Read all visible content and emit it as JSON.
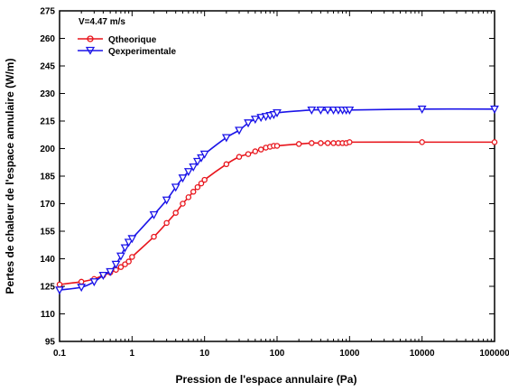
{
  "chart_data": {
    "type": "line",
    "xscale": "log",
    "xlabel": "Pression de l'espace annulaire (Pa)",
    "ylabel": "Pertes de chaleur de l'espace annulaire (W/m)",
    "xlim": [
      0.1,
      100000
    ],
    "ylim": [
      95,
      275
    ],
    "x_ticks": [
      0.1,
      1,
      10,
      100,
      1000,
      10000,
      100000
    ],
    "x_tick_labels": [
      "0.1",
      "1",
      "10",
      "100",
      "1000",
      "10000",
      "100000"
    ],
    "y_ticks": [
      95,
      110,
      125,
      140,
      155,
      170,
      185,
      200,
      215,
      230,
      245,
      260,
      275
    ],
    "y_tick_labels": [
      "95",
      "110",
      "125",
      "140",
      "155",
      "170",
      "185",
      "200",
      "215",
      "230",
      "245",
      "260",
      "275"
    ],
    "legend_title": "V=4.47 m/s",
    "legend_position": "top-left",
    "grid": false,
    "series": [
      {
        "name": "Qtheorique",
        "color": "#e8141b",
        "marker": "circle",
        "x": [
          0.1,
          0.2,
          0.3,
          0.4,
          0.5,
          0.6,
          0.7,
          0.8,
          0.9,
          1,
          2,
          3,
          4,
          5,
          6,
          7,
          8,
          9,
          10,
          20,
          30,
          40,
          50,
          60,
          70,
          80,
          90,
          100,
          200,
          300,
          400,
          500,
          600,
          700,
          800,
          900,
          1000,
          10000,
          100000
        ],
        "values": [
          126,
          127.5,
          129,
          131,
          132.5,
          134,
          135.5,
          137,
          138.5,
          141,
          152,
          159.5,
          165,
          170,
          173.5,
          176.5,
          179,
          181,
          183,
          191.5,
          195.5,
          197,
          198.5,
          199.5,
          200.5,
          201,
          201.5,
          201.5,
          202.5,
          203,
          203,
          203,
          203,
          203,
          203,
          203,
          203.5,
          203.5,
          203.5
        ]
      },
      {
        "name": "Qexperimentale",
        "color": "#1b14e8",
        "marker": "triangle-down",
        "x": [
          0.1,
          0.2,
          0.3,
          0.4,
          0.5,
          0.6,
          0.7,
          0.8,
          0.9,
          1,
          2,
          3,
          4,
          5,
          6,
          7,
          8,
          9,
          10,
          20,
          30,
          40,
          50,
          60,
          70,
          80,
          90,
          100,
          300,
          400,
          500,
          600,
          700,
          800,
          900,
          1000,
          10000,
          100000
        ],
        "values": [
          123,
          124.5,
          127.5,
          131,
          133,
          137,
          141.5,
          146,
          149,
          151,
          164,
          172,
          179,
          184,
          187.5,
          190,
          193,
          195,
          197,
          206,
          210,
          214,
          216,
          217,
          217.5,
          218,
          218.5,
          219.5,
          221,
          221,
          221,
          221,
          221,
          221,
          221,
          221,
          221.5,
          221.5
        ]
      }
    ]
  }
}
